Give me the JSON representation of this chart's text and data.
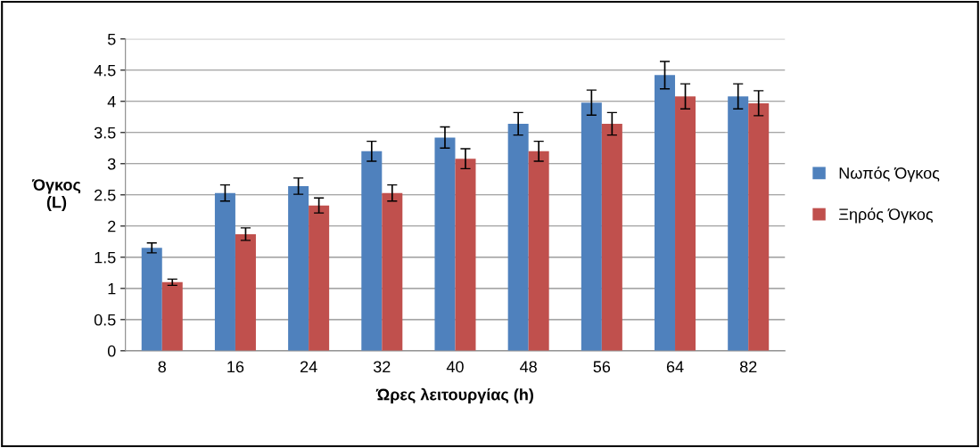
{
  "chart_data": {
    "type": "bar",
    "xlabel": "Ώρες λειτουργίας (h)",
    "ylabel": "Όγκος\n(L)",
    "categories": [
      "8",
      "16",
      "24",
      "32",
      "40",
      "48",
      "56",
      "64",
      "82"
    ],
    "series": [
      {
        "name": "Νωπός Όγκος",
        "color": "#4f81bd",
        "values": [
          1.65,
          2.53,
          2.64,
          3.2,
          3.42,
          3.64,
          3.98,
          4.42,
          4.08
        ],
        "errors": [
          0.08,
          0.13,
          0.13,
          0.16,
          0.17,
          0.18,
          0.2,
          0.22,
          0.2
        ]
      },
      {
        "name": "Ξηρός Όγκος",
        "color": "#c0504d",
        "values": [
          1.1,
          1.87,
          2.33,
          2.53,
          3.08,
          3.2,
          3.64,
          4.08,
          3.97
        ],
        "errors": [
          0.05,
          0.1,
          0.12,
          0.13,
          0.16,
          0.16,
          0.18,
          0.2,
          0.2
        ]
      }
    ],
    "ylim": [
      0,
      5
    ],
    "yticks": [
      0,
      0.5,
      1,
      1.5,
      2,
      2.5,
      3,
      3.5,
      4,
      4.5,
      5
    ],
    "grid": "y",
    "legend": "right"
  }
}
